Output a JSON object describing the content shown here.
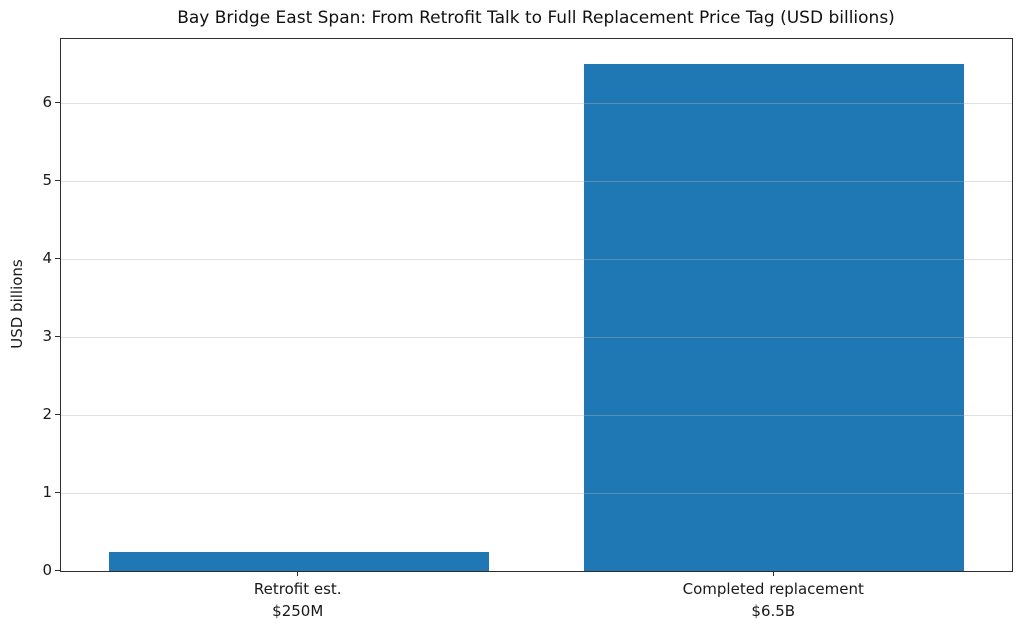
{
  "chart_data": {
    "type": "bar",
    "title": "Bay Bridge East Span: From Retrofit Talk to Full Replacement Price Tag (USD billions)",
    "categories": [
      "Retrofit est.\n$250M",
      "Completed replacement\n$6.5B"
    ],
    "values": [
      0.25,
      6.5
    ],
    "xlabel": "",
    "ylabel": "USD billions",
    "ylim": [
      0,
      6.825
    ],
    "yticks": [
      0,
      1,
      2,
      3,
      4,
      5,
      6
    ],
    "bar_color": "#1f77b4",
    "grid": true,
    "grid_color": "rgba(180,180,180,0.4)",
    "legend": null
  }
}
